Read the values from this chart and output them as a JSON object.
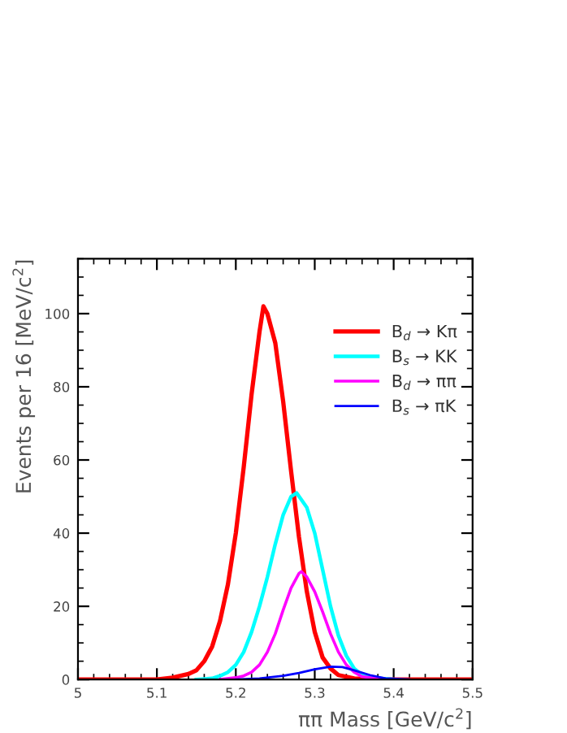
{
  "chart_data": {
    "type": "line",
    "xlabel": "ππ Mass [GeV/c$^{2}$]",
    "ylabel": "Events per 16 [MeV/c$^{2}$]",
    "xlim": [
      5,
      5.5
    ],
    "ylim": [
      0,
      115
    ],
    "xticks": [
      5,
      5.1,
      5.2,
      5.3,
      5.4,
      5.5
    ],
    "yticks": [
      0,
      20,
      40,
      60,
      80,
      100
    ],
    "grid": false,
    "legend": "top right",
    "marker": "none",
    "line_style": "solid",
    "series": [
      {
        "name": "B$_{d}$ → Kπ",
        "color": "#ff0000",
        "x": [
          5.0,
          5.1,
          5.12,
          5.14,
          5.15,
          5.16,
          5.17,
          5.18,
          5.19,
          5.2,
          5.21,
          5.22,
          5.23,
          5.235,
          5.24,
          5.25,
          5.26,
          5.27,
          5.28,
          5.29,
          5.3,
          5.31,
          5.32,
          5.33,
          5.35,
          5.4,
          5.5
        ],
        "values": [
          0,
          0,
          0.5,
          1.5,
          2.5,
          5,
          9,
          16,
          26,
          40,
          58,
          78,
          95,
          102,
          100,
          92,
          76,
          57,
          39,
          24,
          13,
          6,
          3,
          1.2,
          0.3,
          0,
          0
        ]
      },
      {
        "name": "B$_{s}$ → KK",
        "color": "#00ffff",
        "x": [
          5.15,
          5.17,
          5.18,
          5.19,
          5.2,
          5.21,
          5.22,
          5.23,
          5.24,
          5.25,
          5.26,
          5.27,
          5.277,
          5.29,
          5.3,
          5.31,
          5.32,
          5.33,
          5.34,
          5.35,
          5.36,
          5.38,
          5.4
        ],
        "values": [
          0,
          0.3,
          1,
          2,
          4,
          7.5,
          13,
          20,
          28,
          37,
          45,
          50,
          51,
          47,
          40,
          30,
          20,
          12,
          6.5,
          3,
          1.2,
          0.3,
          0
        ]
      },
      {
        "name": "B$_{d}$ → ππ",
        "color": "#ff00ff",
        "x": [
          5.18,
          5.2,
          5.21,
          5.22,
          5.23,
          5.24,
          5.25,
          5.26,
          5.27,
          5.28,
          5.283,
          5.29,
          5.3,
          5.31,
          5.32,
          5.33,
          5.34,
          5.35,
          5.36,
          5.38,
          5.4
        ],
        "values": [
          0,
          0.5,
          1,
          2,
          4,
          7.5,
          12.5,
          19,
          25,
          29,
          29.5,
          28,
          24,
          18.5,
          12.5,
          7.5,
          4,
          2,
          0.8,
          0.2,
          0
        ]
      },
      {
        "name": "B$_{s}$ → πK",
        "color": "#0000ff",
        "x": [
          5.2,
          5.23,
          5.26,
          5.28,
          5.3,
          5.32,
          5.335,
          5.35,
          5.37,
          5.39,
          5.42
        ],
        "values": [
          0,
          0.3,
          1,
          1.8,
          2.8,
          3.5,
          3.4,
          2.5,
          1.2,
          0.3,
          0
        ]
      }
    ]
  }
}
